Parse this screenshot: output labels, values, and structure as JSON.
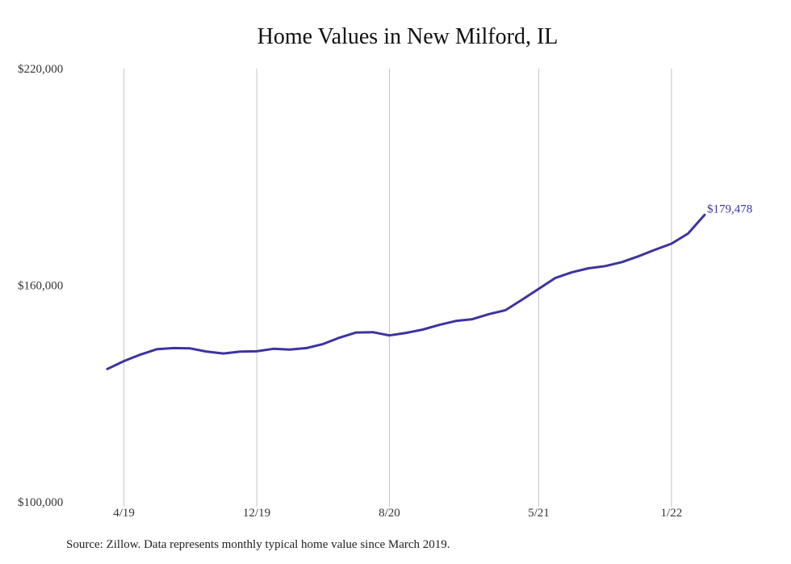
{
  "chart_data": {
    "type": "line",
    "title": "Home Values in New Milford, IL",
    "xlabel": "",
    "ylabel": "",
    "ylim": [
      100000,
      220000
    ],
    "y_ticks": [
      "$220,000",
      "$160,000",
      "$100,000"
    ],
    "y_tick_values": [
      220000,
      160000,
      100000
    ],
    "x_ticks": [
      "4/19",
      "12/19",
      "8/20",
      "5/21",
      "1/22"
    ],
    "x_tick_values": [
      "2019-04",
      "2019-12",
      "2020-08",
      "2021-05",
      "2022-01"
    ],
    "grid": "vertical",
    "line_color": "#3b34a0",
    "end_label": "$179,478",
    "series": [
      {
        "x": [
          "2019-03",
          "2019-04",
          "2019-05",
          "2019-06",
          "2019-07",
          "2019-08",
          "2019-09",
          "2019-10",
          "2019-11",
          "2019-12",
          "2020-01",
          "2020-02",
          "2020-03",
          "2020-04",
          "2020-05",
          "2020-06",
          "2020-07",
          "2020-08",
          "2020-09",
          "2020-10",
          "2020-11",
          "2020-12",
          "2021-01",
          "2021-02",
          "2021-03",
          "2021-04",
          "2021-05",
          "2021-06",
          "2021-07",
          "2021-08",
          "2021-09",
          "2021-10",
          "2021-11",
          "2021-12",
          "2022-01",
          "2022-02",
          "2022-03"
        ],
        "values": [
          136800,
          139000,
          140800,
          142300,
          142600,
          142500,
          141600,
          141100,
          141600,
          141700,
          142400,
          142200,
          142600,
          143700,
          145500,
          146900,
          147000,
          146100,
          146800,
          147700,
          149000,
          150100,
          150600,
          152000,
          153100,
          156000,
          159000,
          162000,
          163600,
          164700,
          165300,
          166400,
          168000,
          169800,
          171500,
          174300,
          179478
        ]
      }
    ]
  },
  "source": "Source: Zillow. Data represents monthly typical home value since March 2019."
}
